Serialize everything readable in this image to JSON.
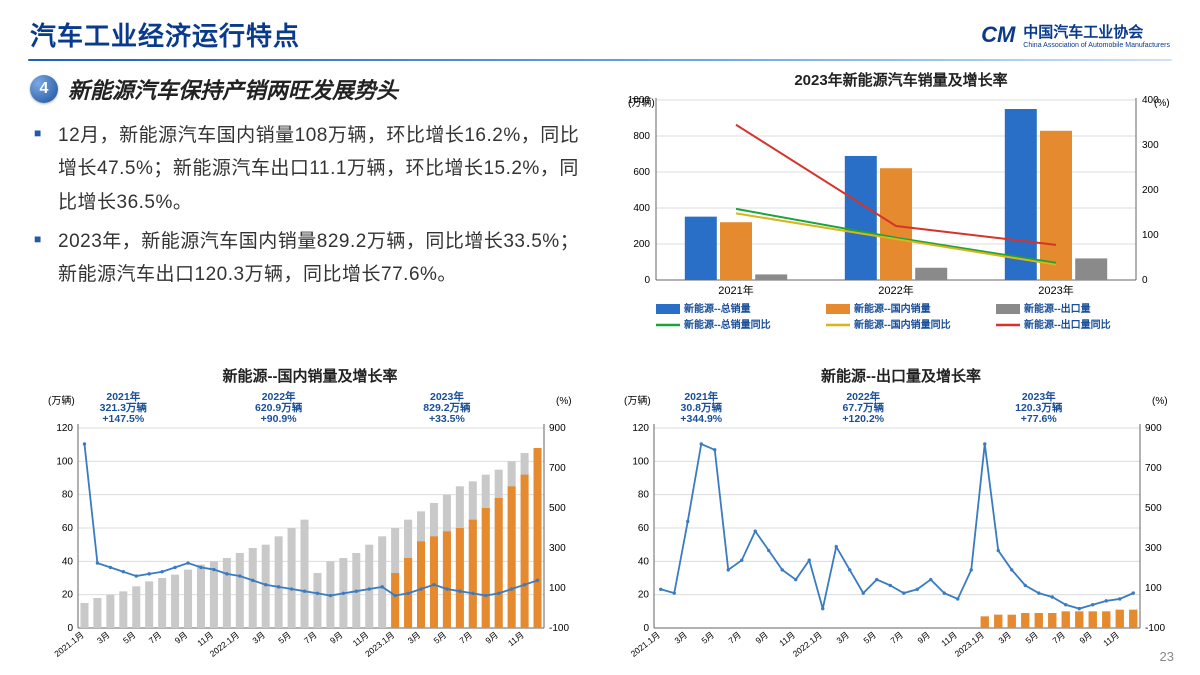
{
  "slide": {
    "title": "汽车工业经济运行特点",
    "page_number": "23",
    "logo": {
      "mark": "CM",
      "cn": "中国汽车工业协会",
      "en": "China Association of Automobile Manufacturers"
    }
  },
  "section": {
    "number": "4",
    "heading": "新能源汽车保持产销两旺发展势头",
    "bullets": [
      "12月，新能源汽车国内销量108万辆，环比增长16.2%，同比增长47.5%；新能源汽车出口11.1万辆，环比增长15.2%，同比增长36.5%。",
      "2023年，新能源汽车国内销量829.2万辆，同比增长33.5%；新能源汽车出口120.3万辆，同比增长77.6%。"
    ]
  },
  "chart_top_right": {
    "title": "2023年新能源汽车销量及增长率",
    "y_left_label": "(万辆)",
    "y_right_label": "(%)",
    "categories": [
      "2021年",
      "2022年",
      "2023年"
    ],
    "bars": {
      "total": {
        "label": "新能源--总销量",
        "color": "#2a6fc7",
        "values": [
          352,
          689,
          950
        ]
      },
      "domestic": {
        "label": "新能源--国内销量",
        "color": "#e58a2e",
        "values": [
          321,
          621,
          829
        ]
      },
      "export": {
        "label": "新能源--出口量",
        "color": "#8a8a8a",
        "values": [
          31,
          68,
          120
        ]
      }
    },
    "lines": {
      "total_g": {
        "label": "新能源--总销量同比",
        "color": "#1aa43a",
        "values": [
          158,
          94,
          38
        ]
      },
      "domestic_g": {
        "label": "新能源--国内销量同比",
        "color": "#d9b41a",
        "values": [
          148,
          91,
          34
        ]
      },
      "export_g": {
        "label": "新能源--出口量同比",
        "color": "#d4342a",
        "values": [
          345,
          120,
          78
        ]
      }
    },
    "y_left": {
      "min": 0,
      "max": 1000,
      "step": 200
    },
    "y_right": {
      "min": 0,
      "max": 400,
      "step": 100
    },
    "bg": "#ffffff",
    "grid": "#dcdcdc"
  },
  "chart_bottom_left": {
    "title": "新能源--国内销量及增长率",
    "y_left_label": "(万辆)",
    "y_right_label": "(%)",
    "months": [
      "2021.1月",
      "3月",
      "5月",
      "7月",
      "9月",
      "11月",
      "2022.1月",
      "3月",
      "5月",
      "7月",
      "9月",
      "11月",
      "2023.1月",
      "3月",
      "5月",
      "7月",
      "9月",
      "11月"
    ],
    "bars_prev": {
      "color": "#c9c9c9",
      "values": [
        15,
        18,
        20,
        22,
        25,
        28,
        30,
        32,
        35,
        38,
        40,
        42,
        45,
        48,
        50,
        55,
        60,
        65,
        33,
        40,
        42,
        45,
        50,
        55,
        60,
        65,
        70,
        75,
        80,
        85,
        88,
        92,
        95,
        100,
        105,
        108
      ]
    },
    "bars_curr": {
      "color": "#e58a2e",
      "start_index": 24,
      "values": [
        33,
        42,
        52,
        55,
        58,
        60,
        65,
        72,
        78,
        85,
        92,
        108
      ]
    },
    "line_growth": {
      "color": "#3a7bc2",
      "values": [
        85,
        30,
        28,
        26,
        24,
        25,
        26,
        28,
        30,
        28,
        27,
        25,
        24,
        22,
        20,
        19,
        18,
        17,
        16,
        15,
        16,
        17,
        18,
        19,
        15,
        16,
        18,
        20,
        18,
        17,
        16,
        15,
        16,
        18,
        20,
        22
      ]
    },
    "y_left": {
      "min": 0,
      "max": 120,
      "step": 20
    },
    "y_right": {
      "min": -100,
      "max": 900,
      "step": 200
    },
    "annotations": [
      {
        "text": "2021年\n321.3万辆\n+147.5%",
        "x_idx": 3
      },
      {
        "text": "2022年\n620.9万辆\n+90.9%",
        "x_idx": 15
      },
      {
        "text": "2023年\n829.2万辆\n+33.5%",
        "x_idx": 28
      }
    ],
    "bg": "#ffffff",
    "grid": "#dcdcdc"
  },
  "chart_bottom_right": {
    "title": "新能源--出口量及增长率",
    "y_left_label": "(万辆)",
    "y_right_label": "(%)",
    "months": [
      "2021.1月",
      "3月",
      "5月",
      "7月",
      "9月",
      "11月",
      "2022.1月",
      "3月",
      "5月",
      "7月",
      "9月",
      "11月",
      "2023.1月",
      "3月",
      "5月",
      "7月",
      "9月",
      "11月"
    ],
    "bars_curr": {
      "color": "#e58a2e",
      "start_index": 24,
      "values": [
        7,
        8,
        8,
        9,
        9,
        9,
        10,
        10,
        10,
        10,
        11,
        11
      ]
    },
    "line_growth": {
      "color": "#3a7bc2",
      "values": [
        20,
        18,
        55,
        95,
        92,
        30,
        35,
        50,
        40,
        30,
        25,
        35,
        10,
        42,
        30,
        18,
        25,
        22,
        18,
        20,
        25,
        18,
        15,
        30,
        95,
        40,
        30,
        22,
        18,
        16,
        12,
        10,
        12,
        14,
        15,
        18
      ]
    },
    "y_left": {
      "min": 0,
      "max": 120,
      "step": 20
    },
    "y_right": {
      "min": -100,
      "max": 900,
      "step": 200
    },
    "annotations": [
      {
        "text": "2021年\n30.8万辆\n+344.9%",
        "x_idx": 3
      },
      {
        "text": "2022年\n67.7万辆\n+120.2%",
        "x_idx": 15
      },
      {
        "text": "2023年\n120.3万辆\n+77.6%",
        "x_idx": 28
      }
    ],
    "bg": "#ffffff",
    "grid": "#dcdcdc"
  }
}
